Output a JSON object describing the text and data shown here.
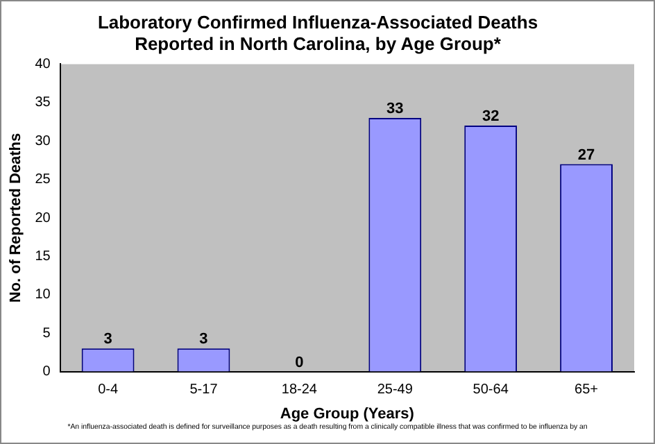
{
  "chart_data": {
    "type": "bar",
    "title": "Laboratory Confirmed Influenza-Associated Deaths\nReported in North Carolina, by Age Group*",
    "xlabel": "Age Group (Years)",
    "ylabel": "No. of Reported Deaths",
    "categories": [
      "0-4",
      "5-17",
      "18-24",
      "25-49",
      "50-64",
      "65+"
    ],
    "values": [
      3,
      3,
      0,
      33,
      32,
      27
    ],
    "color": "#9999ff",
    "data_labels": true,
    "ylim": [
      0,
      40
    ],
    "yticks": [
      0,
      5,
      10,
      15,
      20,
      25,
      30,
      35,
      40
    ],
    "grid": false,
    "legend": false,
    "annotations": [
      "*An influenza-associated death is defined for surveillance purposes as a death resulting from a clinically compatible illness that was confirmed to be influenza by an"
    ]
  }
}
